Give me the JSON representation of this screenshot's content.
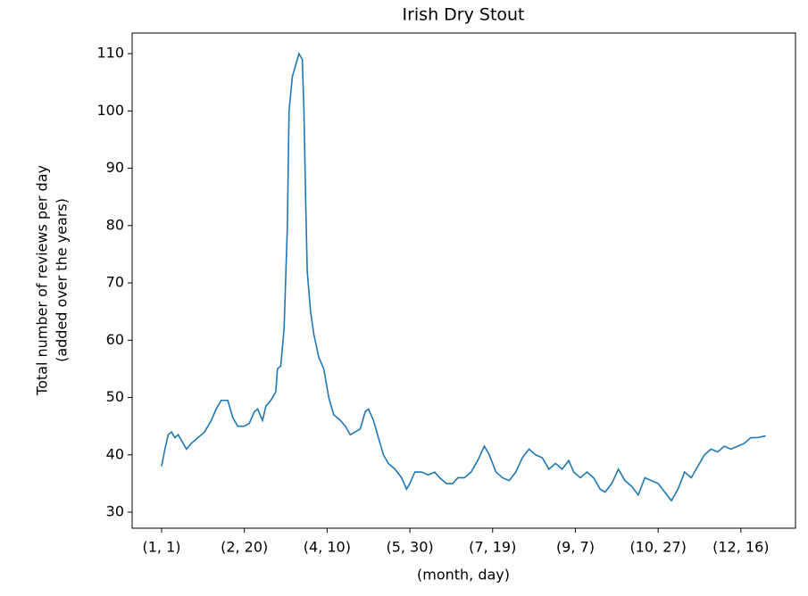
{
  "chart_data": {
    "type": "line",
    "title": "Irish Dry Stout",
    "x_label": "(month, day)",
    "y_label": [
      "Total number of reviews per day",
      "(added over the years)"
    ],
    "xlim": [
      -17.8,
      383
    ],
    "ylim": [
      27.2,
      113.6
    ],
    "xticks": [
      {
        "value": 0,
        "label": "(1, 1)"
      },
      {
        "value": 50,
        "label": "(2, 20)"
      },
      {
        "value": 100,
        "label": "(4, 10)"
      },
      {
        "value": 150,
        "label": "(5, 30)"
      },
      {
        "value": 200,
        "label": "(7, 19)"
      },
      {
        "value": 250,
        "label": "(9, 7)"
      },
      {
        "value": 300,
        "label": "(10, 27)"
      },
      {
        "value": 350,
        "label": "(12, 16)"
      }
    ],
    "yticks": [
      30,
      40,
      50,
      60,
      70,
      80,
      90,
      100,
      110
    ],
    "x": [
      0,
      2,
      4,
      6,
      8,
      10,
      13,
      15,
      18,
      22,
      26,
      30,
      33,
      36,
      40,
      43,
      46,
      50,
      53,
      56,
      58,
      61,
      63,
      66,
      69,
      70,
      72,
      74,
      76,
      77,
      79,
      81,
      83,
      85,
      86,
      87,
      88,
      90,
      92,
      95,
      98,
      101,
      104,
      108,
      111,
      114,
      117,
      120,
      123,
      125,
      128,
      131,
      134,
      137,
      141,
      145,
      148,
      150,
      153,
      157,
      161,
      165,
      168,
      172,
      176,
      179,
      183,
      187,
      191,
      195,
      198,
      202,
      206,
      210,
      214,
      218,
      222,
      226,
      230,
      234,
      238,
      242,
      246,
      249,
      253,
      257,
      261,
      265,
      268,
      272,
      276,
      280,
      284,
      288,
      292,
      296,
      300,
      304,
      308,
      312,
      316,
      320,
      324,
      328,
      332,
      336,
      340,
      344,
      348,
      352,
      356,
      360,
      365
    ],
    "series": [
      {
        "name": "Irish Dry Stout",
        "color": "#1f77b4",
        "values": [
          38,
          41,
          43.5,
          44,
          43,
          43.5,
          42,
          41,
          42,
          43,
          44,
          46,
          48,
          49.5,
          49.5,
          46.5,
          45,
          45,
          45.5,
          47.5,
          48,
          46,
          48.5,
          49.5,
          51,
          55,
          55.5,
          62,
          80,
          100,
          106,
          108,
          110,
          109,
          100,
          85,
          72,
          65,
          61,
          57,
          55,
          50,
          47,
          46,
          45,
          43.5,
          44,
          44.5,
          47.5,
          48,
          46,
          43,
          40,
          38.5,
          37.5,
          36,
          34,
          35,
          37,
          37,
          36.5,
          37,
          36,
          35,
          35,
          36,
          36,
          37,
          39,
          41.5,
          40,
          37,
          36,
          35.5,
          37,
          39.5,
          41,
          40,
          39.5,
          37.5,
          38.5,
          37.5,
          39,
          37,
          36,
          37,
          36,
          34,
          33.5,
          35,
          37.5,
          35.5,
          34.5,
          33,
          36,
          35.5,
          35,
          33.5,
          32,
          34,
          37,
          36,
          38,
          40,
          41,
          40.5,
          41.5,
          41,
          41.5,
          42,
          43,
          43,
          43.3
        ]
      }
    ]
  }
}
